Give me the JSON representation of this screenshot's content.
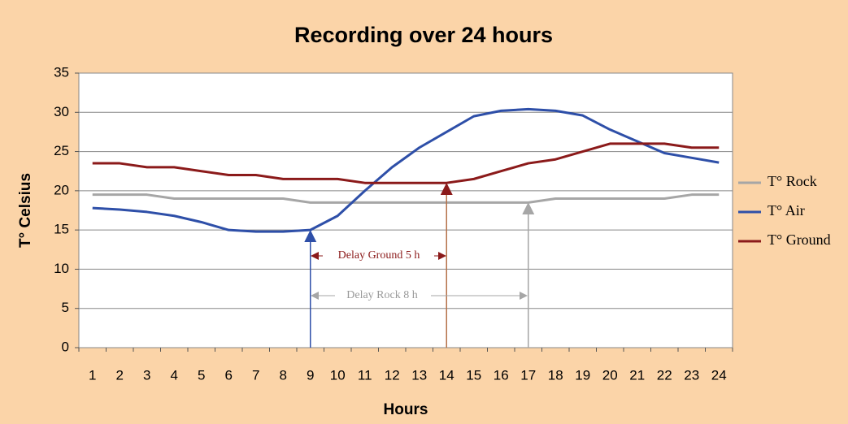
{
  "chart_data": {
    "type": "line",
    "title": "Recording over 24 hours",
    "x_label": "Hours",
    "y_label": "T° Celsius",
    "categories": [
      "1",
      "2",
      "3",
      "4",
      "5",
      "6",
      "7",
      "8",
      "9",
      "10",
      "11",
      "12",
      "13",
      "14",
      "15",
      "16",
      "17",
      "18",
      "19",
      "20",
      "21",
      "22",
      "23",
      "24"
    ],
    "series": [
      {
        "name": "T° Rock",
        "color": "#a6a6a6",
        "values": [
          19.5,
          19.5,
          19.5,
          19,
          19,
          19,
          19,
          19,
          18.5,
          18.5,
          18.5,
          18.5,
          18.5,
          18.5,
          18.5,
          18.5,
          18.5,
          19,
          19,
          19,
          19,
          19,
          19.5,
          19.5
        ]
      },
      {
        "name": "T° Air",
        "color": "#2e4fa8",
        "values": [
          17.8,
          17.6,
          17.3,
          16.8,
          16,
          15,
          14.8,
          14.8,
          15,
          16.8,
          20,
          23,
          25.5,
          27.5,
          29.5,
          30.2,
          30.4,
          30.2,
          29.6,
          27.8,
          26.3,
          24.8,
          24.2,
          23.6
        ]
      },
      {
        "name": "T° Ground",
        "color": "#8b1a1a",
        "values": [
          23.5,
          23.5,
          23,
          23,
          22.5,
          22,
          22,
          21.5,
          21.5,
          21.5,
          21,
          21,
          21,
          21,
          21.5,
          22.5,
          23.5,
          24,
          25,
          26,
          26,
          26,
          25.5,
          25.5
        ]
      }
    ],
    "ylim": [
      0,
      35
    ],
    "yticks": [
      0,
      5,
      10,
      15,
      20,
      25,
      30,
      35
    ],
    "grid": true,
    "legend": "right",
    "annotations": [
      "Delay Ground 5 h",
      "Delay Rock 8 h"
    ]
  }
}
